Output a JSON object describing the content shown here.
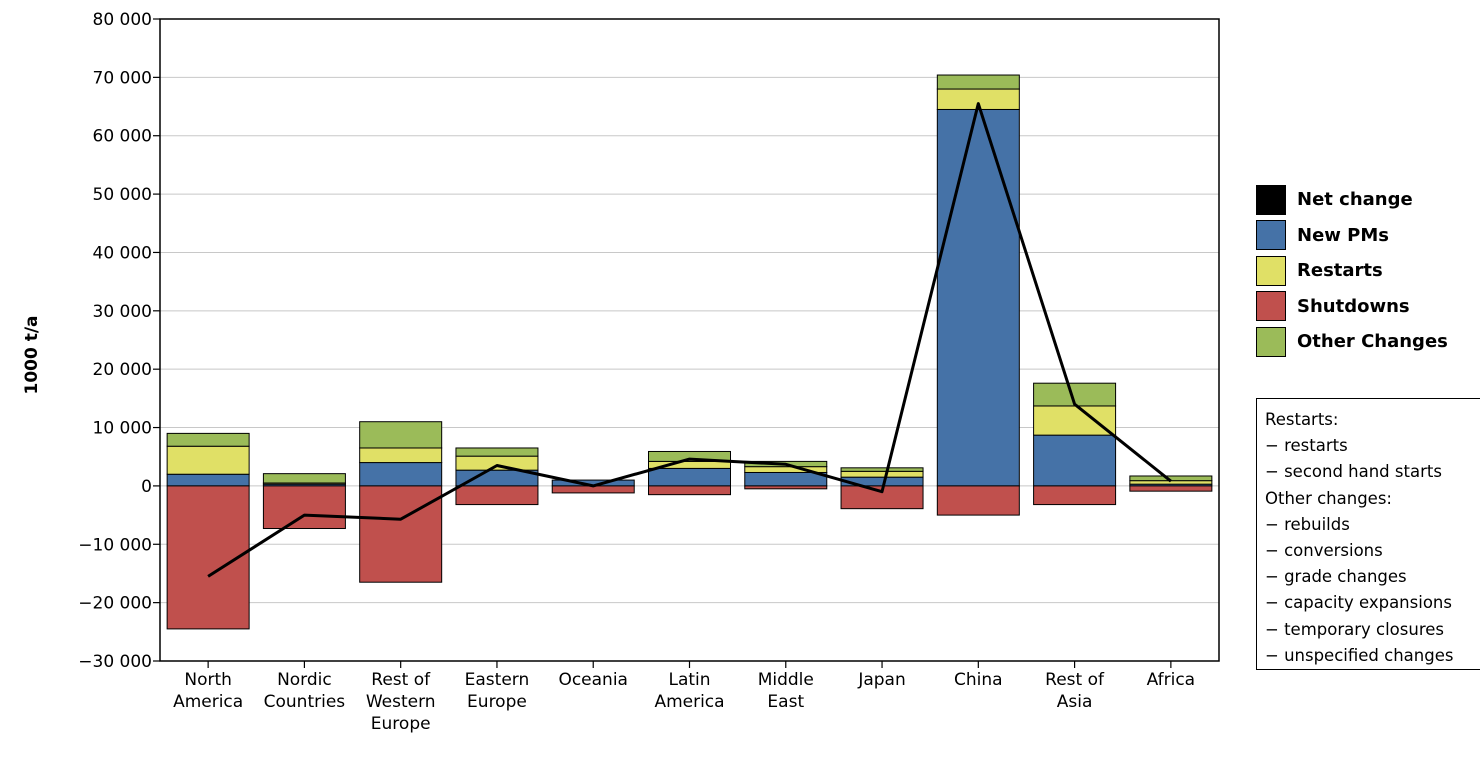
{
  "chart_data": {
    "type": "bar",
    "stacked": true,
    "title": "",
    "xlabel": "",
    "ylabel": "1000 t/a",
    "ylim": [
      -30000,
      80000
    ],
    "yticks": [
      80000,
      70000,
      60000,
      50000,
      40000,
      30000,
      20000,
      10000,
      0,
      -10000,
      -20000,
      -30000
    ],
    "ytick_labels": [
      "80 000",
      "70 000",
      "60 000",
      "50 000",
      "40 000",
      "30 000",
      "20 000",
      "10 000",
      "0",
      "−10 000",
      "−20 000",
      "−30 000"
    ],
    "grid": "horizontal",
    "legend_position": "right",
    "categories": [
      [
        "North",
        "America"
      ],
      [
        "Nordic",
        "Countries"
      ],
      [
        "Rest of",
        "Western",
        "Europe"
      ],
      [
        "Eastern",
        "Europe"
      ],
      [
        "Oceania"
      ],
      [
        "Latin",
        "America"
      ],
      [
        "Middle",
        "East"
      ],
      [
        "Japan"
      ],
      [
        "China"
      ],
      [
        "Rest of",
        "Asia"
      ],
      [
        "Africa"
      ]
    ],
    "series": [
      {
        "name": "New PMs",
        "color": "#4572a7",
        "values": [
          2000,
          300,
          4000,
          2700,
          1000,
          3000,
          2300,
          1500,
          64500,
          8700,
          300
        ]
      },
      {
        "name": "Restarts",
        "color": "#e0e066",
        "values": [
          4800,
          200,
          2500,
          2400,
          0,
          1200,
          1000,
          1000,
          3500,
          5000,
          600
        ]
      },
      {
        "name": "Other Changes",
        "color": "#9bbb59",
        "values": [
          2200,
          1600,
          4500,
          1400,
          0,
          1700,
          900,
          600,
          2400,
          3900,
          800
        ]
      },
      {
        "name": "Shutdowns",
        "color": "#c0504d",
        "values": [
          -24500,
          -7300,
          -16500,
          -3200,
          -1200,
          -1500,
          -500,
          -3900,
          -5000,
          -3200,
          -900
        ]
      },
      {
        "name": "Net change",
        "type": "line",
        "color": "#000000",
        "values": [
          -15500,
          -5000,
          -5700,
          3500,
          0,
          4600,
          3700,
          -1000,
          65500,
          14000,
          800
        ]
      }
    ],
    "legend": [
      {
        "name": "Net change",
        "color": "#000000"
      },
      {
        "name": "New PMs",
        "color": "#4572a7"
      },
      {
        "name": "Restarts",
        "color": "#e0e066"
      },
      {
        "name": "Shutdowns",
        "color": "#c0504d"
      },
      {
        "name": "Other Changes",
        "color": "#9bbb59"
      }
    ],
    "notes": [
      "Restarts:",
      "− restarts",
      "− second hand starts",
      "Other changes:",
      "− rebuilds",
      "− conversions",
      "− grade changes",
      "− capacity expansions",
      "− temporary closures",
      "− unspecified changes"
    ]
  }
}
